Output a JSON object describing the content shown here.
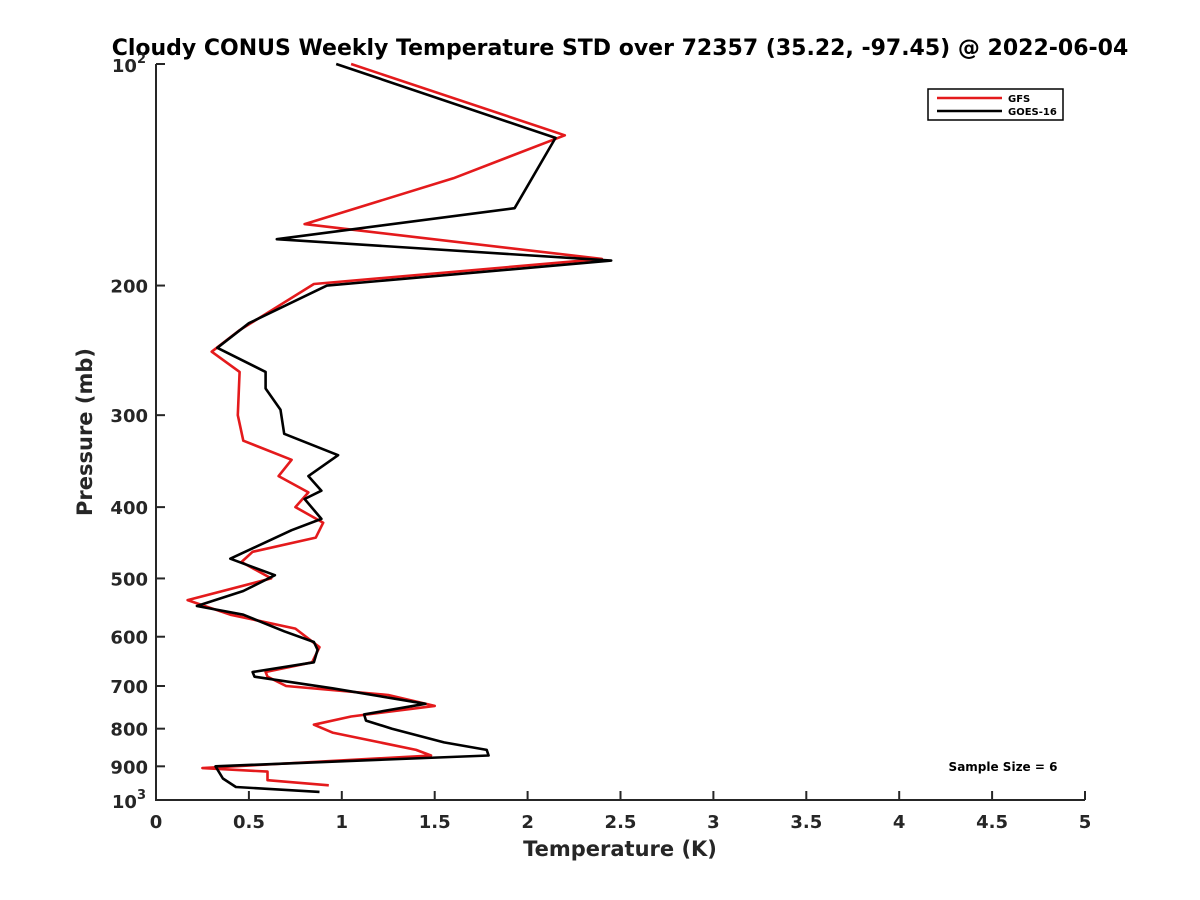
{
  "chart_data": {
    "type": "line",
    "title": "Cloudy CONUS Weekly Temperature STD over 72357 (35.22, -97.45) @ 2022-06-04",
    "xlabel": "Temperature (K)",
    "ylabel": "Pressure (mb)",
    "xlim": [
      0,
      5
    ],
    "ylim": [
      1000,
      100
    ],
    "y_scale": "log",
    "y_reversed": true,
    "x_ticks": [
      "0",
      "0.5",
      "1",
      "1.5",
      "2",
      "2.5",
      "3",
      "3.5",
      "4",
      "4.5",
      "5"
    ],
    "x_tick_values": [
      0,
      0.5,
      1,
      1.5,
      2,
      2.5,
      3,
      3.5,
      4,
      4.5,
      5
    ],
    "y_ticks": [
      {
        "value": 100,
        "base": "10",
        "exp": "2"
      },
      {
        "value": 200,
        "label": "200"
      },
      {
        "value": 300,
        "label": "300"
      },
      {
        "value": 400,
        "label": "400"
      },
      {
        "value": 500,
        "label": "500"
      },
      {
        "value": 600,
        "label": "600"
      },
      {
        "value": 700,
        "label": "700"
      },
      {
        "value": 800,
        "label": "800"
      },
      {
        "value": 900,
        "label": "900"
      },
      {
        "value": 1000,
        "base": "10",
        "exp": "3"
      }
    ],
    "grid": false,
    "legend_position": "top-right",
    "series": [
      {
        "name": "GFS",
        "color": "#e41a1c",
        "points": [
          [
            1.05,
            100
          ],
          [
            2.2,
            125
          ],
          [
            1.6,
            143
          ],
          [
            0.8,
            165
          ],
          [
            2.4,
            184
          ],
          [
            0.85,
            199
          ],
          [
            0.45,
            230
          ],
          [
            0.3,
            246
          ],
          [
            0.45,
            262
          ],
          [
            0.44,
            300
          ],
          [
            0.47,
            325
          ],
          [
            0.73,
            345
          ],
          [
            0.66,
            363
          ],
          [
            0.82,
            382
          ],
          [
            0.75,
            400
          ],
          [
            0.9,
            420
          ],
          [
            0.86,
            440
          ],
          [
            0.52,
            460
          ],
          [
            0.46,
            475
          ],
          [
            0.62,
            500
          ],
          [
            0.17,
            535
          ],
          [
            0.4,
            560
          ],
          [
            0.75,
            585
          ],
          [
            0.88,
            620
          ],
          [
            0.84,
            650
          ],
          [
            0.59,
            670
          ],
          [
            0.6,
            680
          ],
          [
            0.7,
            700
          ],
          [
            1.25,
            720
          ],
          [
            1.5,
            745
          ],
          [
            1.05,
            770
          ],
          [
            0.85,
            790
          ],
          [
            0.95,
            810
          ],
          [
            1.4,
            855
          ],
          [
            1.48,
            870
          ],
          [
            0.25,
            905
          ],
          [
            0.6,
            915
          ],
          [
            0.6,
            940
          ],
          [
            0.93,
            955
          ]
        ]
      },
      {
        "name": "GOES-16",
        "color": "#000000",
        "points": [
          [
            0.97,
            100
          ],
          [
            2.15,
            126
          ],
          [
            1.93,
            157
          ],
          [
            0.65,
            173
          ],
          [
            2.45,
            185
          ],
          [
            0.92,
            200
          ],
          [
            0.5,
            225
          ],
          [
            0.33,
            243
          ],
          [
            0.59,
            262
          ],
          [
            0.59,
            276
          ],
          [
            0.67,
            295
          ],
          [
            0.69,
            318
          ],
          [
            0.98,
            340
          ],
          [
            0.82,
            363
          ],
          [
            0.89,
            380
          ],
          [
            0.8,
            390
          ],
          [
            0.89,
            415
          ],
          [
            0.73,
            430
          ],
          [
            0.4,
            470
          ],
          [
            0.64,
            495
          ],
          [
            0.47,
            520
          ],
          [
            0.22,
            545
          ],
          [
            0.47,
            560
          ],
          [
            0.69,
            590
          ],
          [
            0.85,
            610
          ],
          [
            0.87,
            625
          ],
          [
            0.85,
            650
          ],
          [
            0.52,
            670
          ],
          [
            0.53,
            680
          ],
          [
            0.95,
            705
          ],
          [
            1.45,
            740
          ],
          [
            1.12,
            765
          ],
          [
            1.13,
            780
          ],
          [
            1.27,
            800
          ],
          [
            1.55,
            835
          ],
          [
            1.78,
            855
          ],
          [
            1.79,
            870
          ],
          [
            0.32,
            900
          ],
          [
            0.36,
            935
          ],
          [
            0.43,
            960
          ],
          [
            0.88,
            975
          ]
        ]
      }
    ],
    "annotations": [
      "Sample Size = 6"
    ]
  }
}
